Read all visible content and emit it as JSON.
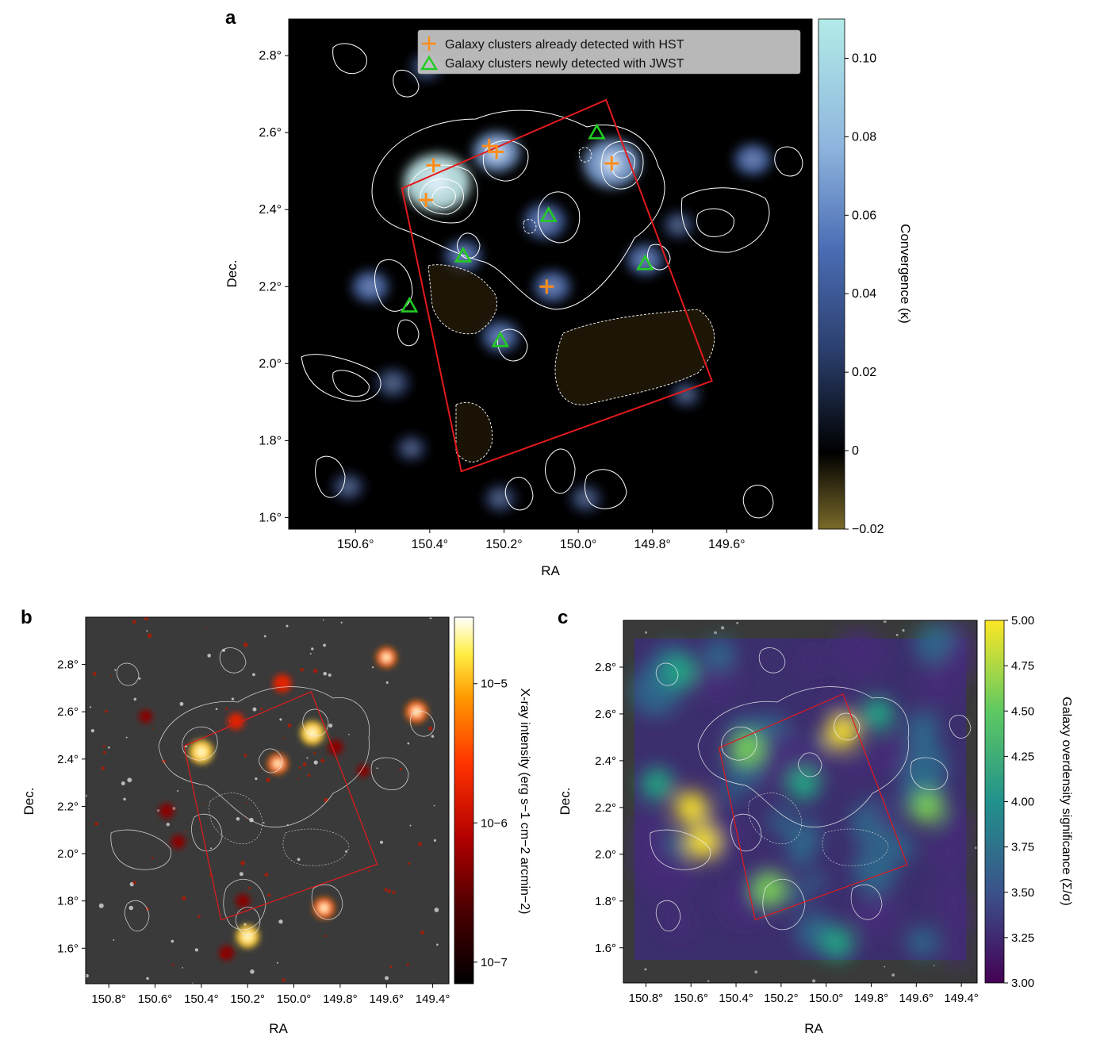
{
  "panels": {
    "a": {
      "letter": "a"
    },
    "b": {
      "letter": "b"
    },
    "c": {
      "letter": "c"
    }
  },
  "chart_data": [
    {
      "panel": "a",
      "type": "heatmap",
      "title": "",
      "xlabel": "RA",
      "ylabel": "Dec.",
      "xlim": [
        150.78,
        149.37
      ],
      "ylim": [
        1.57,
        2.895
      ],
      "xticks": [
        150.6,
        150.4,
        150.2,
        150.0,
        149.8,
        149.6
      ],
      "xtick_labels": [
        "150.6°",
        "150.4°",
        "150.2°",
        "150.0°",
        "149.8°",
        "149.6°"
      ],
      "yticks": [
        1.6,
        1.8,
        2.0,
        2.2,
        2.4,
        2.6,
        2.8
      ],
      "ytick_labels": [
        "1.6°",
        "1.8°",
        "2.0°",
        "2.2°",
        "2.4°",
        "2.6°",
        "2.8°"
      ],
      "colorbar": {
        "label": "Convergence (κ)",
        "range": [
          -0.02,
          0.11
        ],
        "ticks": [
          -0.02,
          0,
          0.02,
          0.04,
          0.06,
          0.08,
          0.1
        ],
        "tick_labels": [
          "−0.02",
          "0",
          "0.02",
          "0.04",
          "0.06",
          "0.08",
          "0.10"
        ],
        "colors": [
          "#7a6a2a",
          "#000000",
          "#2b3f6e",
          "#5a7fc4",
          "#a8cde6",
          "#aeeae6"
        ]
      },
      "legend": {
        "position": "top-right",
        "entries": [
          {
            "label": "Galaxy clusters already detected with HST",
            "marker": "plus",
            "color": "#ff8c1a"
          },
          {
            "label": "Galaxy clusters newly detected with JWST",
            "marker": "triangle",
            "color": "#22cc22"
          }
        ]
      },
      "footprint": {
        "color": "#e31a1c",
        "corners": [
          [
            150.475,
            2.455
          ],
          [
            149.925,
            2.685
          ],
          [
            149.64,
            1.955
          ],
          [
            150.315,
            1.72
          ]
        ]
      },
      "hst_clusters": [
        {
          "ra": 150.39,
          "dec": 2.515
        },
        {
          "ra": 150.41,
          "dec": 2.425
        },
        {
          "ra": 150.24,
          "dec": 2.565
        },
        {
          "ra": 150.22,
          "dec": 2.55
        },
        {
          "ra": 149.91,
          "dec": 2.52
        },
        {
          "ra": 150.085,
          "dec": 2.2
        }
      ],
      "jwst_clusters": [
        {
          "ra": 149.95,
          "dec": 2.6
        },
        {
          "ra": 150.08,
          "dec": 2.385
        },
        {
          "ra": 150.31,
          "dec": 2.28
        },
        {
          "ra": 149.82,
          "dec": 2.26
        },
        {
          "ra": 150.455,
          "dec": 2.15
        },
        {
          "ra": 150.21,
          "dec": 2.06
        }
      ],
      "peaks": [
        {
          "ra": 150.38,
          "dec": 2.47,
          "k": 0.1
        },
        {
          "ra": 150.22,
          "dec": 2.55,
          "k": 0.06
        },
        {
          "ra": 149.91,
          "dec": 2.52,
          "k": 0.08
        },
        {
          "ra": 150.09,
          "dec": 2.37,
          "k": 0.05
        },
        {
          "ra": 150.56,
          "dec": 2.2,
          "k": 0.04
        },
        {
          "ra": 150.5,
          "dec": 1.95,
          "k": 0.035
        },
        {
          "ra": 150.07,
          "dec": 2.2,
          "k": 0.04
        },
        {
          "ra": 150.31,
          "dec": 2.28,
          "k": 0.04
        },
        {
          "ra": 149.82,
          "dec": 2.27,
          "k": 0.04
        },
        {
          "ra": 150.21,
          "dec": 2.07,
          "k": 0.04
        },
        {
          "ra": 149.73,
          "dec": 2.36,
          "k": 0.03
        },
        {
          "ra": 149.53,
          "dec": 2.53,
          "k": 0.04
        },
        {
          "ra": 150.21,
          "dec": 1.65,
          "k": 0.03
        },
        {
          "ra": 149.98,
          "dec": 1.65,
          "k": 0.03
        },
        {
          "ra": 150.62,
          "dec": 1.68,
          "k": 0.03
        },
        {
          "ra": 150.41,
          "dec": 2.77,
          "k": 0.03
        },
        {
          "ra": 149.71,
          "dec": 1.92,
          "k": 0.025
        },
        {
          "ra": 150.45,
          "dec": 1.78,
          "k": 0.025
        }
      ]
    },
    {
      "panel": "b",
      "type": "heatmap",
      "title": "",
      "xlabel": "RA",
      "ylabel": "Dec.",
      "xlim": [
        150.9,
        149.33
      ],
      "ylim": [
        1.45,
        3.0
      ],
      "xticks": [
        150.8,
        150.6,
        150.4,
        150.2,
        150.0,
        149.8,
        149.6,
        149.4
      ],
      "xtick_labels": [
        "150.8°",
        "150.6°",
        "150.4°",
        "150.2°",
        "150.0°",
        "149.8°",
        "149.6°",
        "149.4°"
      ],
      "yticks": [
        1.6,
        1.8,
        2.0,
        2.2,
        2.4,
        2.6,
        2.8
      ],
      "ytick_labels": [
        "1.6°",
        "1.8°",
        "2.0°",
        "2.2°",
        "2.4°",
        "2.6°",
        "2.8°"
      ],
      "colorbar": {
        "label": "X-ray intensity (erg s−1 cm−2 arcmin−2)",
        "scale": "log",
        "range": [
          7e-08,
          3e-05
        ],
        "ticks": [
          1e-07,
          1e-06,
          1e-05
        ],
        "tick_labels": [
          "10−7",
          "10−6",
          "10−5"
        ],
        "colors": [
          "#000000",
          "#4a0000",
          "#b30000",
          "#ff3300",
          "#ff9900",
          "#ffee44",
          "#ffffff"
        ]
      },
      "sources": [
        {
          "ra": 150.4,
          "dec": 2.43,
          "v": 1.0
        },
        {
          "ra": 149.92,
          "dec": 2.51,
          "v": 1.0
        },
        {
          "ra": 150.2,
          "dec": 1.65,
          "v": 0.95
        },
        {
          "ra": 149.87,
          "dec": 1.77,
          "v": 0.85
        },
        {
          "ra": 150.07,
          "dec": 2.38,
          "v": 0.8
        },
        {
          "ra": 150.05,
          "dec": 2.72,
          "v": 0.7
        },
        {
          "ra": 149.6,
          "dec": 2.83,
          "v": 0.8
        },
        {
          "ra": 149.47,
          "dec": 2.6,
          "v": 0.9
        },
        {
          "ra": 150.25,
          "dec": 2.56,
          "v": 0.6
        },
        {
          "ra": 150.55,
          "dec": 2.18,
          "v": 0.5
        },
        {
          "ra": 150.5,
          "dec": 2.05,
          "v": 0.45
        },
        {
          "ra": 150.22,
          "dec": 1.8,
          "v": 0.45
        },
        {
          "ra": 150.29,
          "dec": 1.58,
          "v": 0.5
        },
        {
          "ra": 149.82,
          "dec": 2.45,
          "v": 0.5
        },
        {
          "ra": 150.64,
          "dec": 2.58,
          "v": 0.4
        },
        {
          "ra": 149.7,
          "dec": 2.35,
          "v": 0.35
        }
      ]
    },
    {
      "panel": "c",
      "type": "heatmap",
      "title": "",
      "xlabel": "RA",
      "ylabel": "Dec.",
      "xlim": [
        150.9,
        149.33
      ],
      "ylim": [
        1.45,
        3.0
      ],
      "xticks": [
        150.8,
        150.6,
        150.4,
        150.2,
        150.0,
        149.8,
        149.6,
        149.4
      ],
      "xtick_labels": [
        "150.8°",
        "150.6°",
        "150.4°",
        "150.2°",
        "150.0°",
        "149.8°",
        "149.6°",
        "149.4°"
      ],
      "yticks": [
        1.6,
        1.8,
        2.0,
        2.2,
        2.4,
        2.6,
        2.8
      ],
      "ytick_labels": [
        "1.6°",
        "1.8°",
        "2.0°",
        "2.2°",
        "2.4°",
        "2.6°",
        "2.8°"
      ],
      "colorbar": {
        "label": "Galaxy overdensity significance (Σ/σ)",
        "range": [
          3.0,
          5.0
        ],
        "ticks": [
          3.0,
          3.25,
          3.5,
          3.75,
          4.0,
          4.25,
          4.5,
          4.75,
          5.0
        ],
        "tick_labels": [
          "3.00",
          "3.25",
          "3.50",
          "3.75",
          "4.00",
          "4.25",
          "4.50",
          "4.75",
          "5.00"
        ],
        "colors": [
          "#440154",
          "#3b528b",
          "#21918c",
          "#5ec962",
          "#fde725"
        ]
      },
      "hotspots": [
        {
          "ra": 150.55,
          "dec": 2.05,
          "s": 5.0
        },
        {
          "ra": 150.6,
          "dec": 2.2,
          "s": 4.9
        },
        {
          "ra": 149.93,
          "dec": 2.52,
          "s": 4.8
        },
        {
          "ra": 150.35,
          "dec": 2.45,
          "s": 4.5
        },
        {
          "ra": 150.25,
          "dec": 1.85,
          "s": 4.6
        },
        {
          "ra": 149.55,
          "dec": 2.2,
          "s": 4.6
        },
        {
          "ra": 149.77,
          "dec": 2.6,
          "s": 4.3
        },
        {
          "ra": 150.1,
          "dec": 2.3,
          "s": 4.4
        },
        {
          "ra": 149.95,
          "dec": 1.62,
          "s": 4.3
        },
        {
          "ra": 150.65,
          "dec": 2.78,
          "s": 4.3
        },
        {
          "ra": 150.75,
          "dec": 2.3,
          "s": 4.4
        }
      ]
    }
  ]
}
